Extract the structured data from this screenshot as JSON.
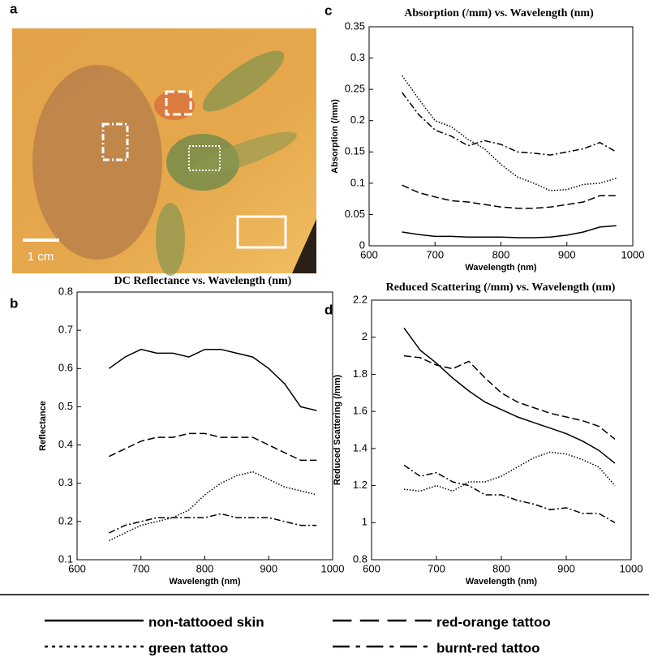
{
  "panel_a": {
    "label": "a",
    "scale_bar": "1 cm"
  },
  "chart_data": [
    {
      "type": "line",
      "panel": "b",
      "title": "DC Reflectance vs. Wavelength (nm)",
      "xlabel": "Wavelength (nm)",
      "ylabel": "Reflectance",
      "x": [
        650,
        675,
        700,
        725,
        750,
        775,
        800,
        825,
        850,
        875,
        900,
        925,
        950,
        975
      ],
      "xlim": [
        600,
        1000
      ],
      "xticks": [
        600,
        700,
        800,
        900,
        1000
      ],
      "ylim": [
        0.1,
        0.8
      ],
      "yticks": [
        0.1,
        0.2,
        0.3,
        0.4,
        0.5,
        0.6,
        0.7,
        0.8
      ],
      "series": [
        {
          "name": "non-tattooed skin",
          "color": "#000000",
          "dash": "none",
          "values": [
            0.6,
            0.63,
            0.65,
            0.64,
            0.64,
            0.63,
            0.65,
            0.65,
            0.64,
            0.63,
            0.6,
            0.56,
            0.5,
            0.49
          ]
        },
        {
          "name": "red-orange tattoo",
          "color": "#000000",
          "dash": "9,4",
          "values": [
            0.37,
            0.39,
            0.41,
            0.42,
            0.42,
            0.43,
            0.43,
            0.42,
            0.42,
            0.42,
            0.4,
            0.38,
            0.36,
            0.36
          ]
        },
        {
          "name": "green tattoo",
          "color": "#000000",
          "dash": "1.5,2",
          "values": [
            0.15,
            0.17,
            0.19,
            0.2,
            0.21,
            0.23,
            0.27,
            0.3,
            0.32,
            0.33,
            0.31,
            0.29,
            0.28,
            0.27
          ]
        },
        {
          "name": "burnt-red tattoo",
          "color": "#000000",
          "dash": "8,3,2,3",
          "values": [
            0.17,
            0.19,
            0.2,
            0.21,
            0.21,
            0.21,
            0.21,
            0.22,
            0.21,
            0.21,
            0.21,
            0.2,
            0.19,
            0.19
          ]
        }
      ]
    },
    {
      "type": "line",
      "panel": "c",
      "title": "Absorption (/mm) vs. Wavelength (nm)",
      "xlabel": "Wavelength (nm)",
      "ylabel": "Absorption (/mm)",
      "x": [
        650,
        675,
        700,
        725,
        750,
        775,
        800,
        825,
        850,
        875,
        900,
        925,
        950,
        975
      ],
      "xlim": [
        600,
        1000
      ],
      "xticks": [
        600,
        700,
        800,
        900,
        1000
      ],
      "ylim": [
        0,
        0.35
      ],
      "yticks": [
        0,
        0.05,
        0.1,
        0.15,
        0.2,
        0.25,
        0.3,
        0.35
      ],
      "series": [
        {
          "color": "#000000",
          "dash": "none",
          "values": [
            0.022,
            0.018,
            0.015,
            0.015,
            0.014,
            0.014,
            0.014,
            0.013,
            0.013,
            0.014,
            0.017,
            0.022,
            0.03,
            0.032
          ]
        },
        {
          "color": "#000000",
          "dash": "9,4",
          "values": [
            0.097,
            0.085,
            0.078,
            0.072,
            0.07,
            0.066,
            0.062,
            0.06,
            0.06,
            0.062,
            0.066,
            0.07,
            0.08,
            0.08
          ]
        },
        {
          "color": "#000000",
          "dash": "1.5,2",
          "values": [
            0.272,
            0.235,
            0.2,
            0.19,
            0.17,
            0.155,
            0.13,
            0.11,
            0.1,
            0.088,
            0.09,
            0.098,
            0.1,
            0.108
          ]
        },
        {
          "color": "#000000",
          "dash": "8,3,2,3",
          "values": [
            0.245,
            0.21,
            0.185,
            0.175,
            0.16,
            0.168,
            0.162,
            0.15,
            0.148,
            0.145,
            0.15,
            0.155,
            0.165,
            0.15
          ]
        }
      ]
    },
    {
      "type": "line",
      "panel": "d",
      "title": "Reduced Scattering (/mm) vs. Wavelength (nm)",
      "xlabel": "Wavelength (nm)",
      "ylabel": "Reduced Scattering (/mm)",
      "x": [
        650,
        675,
        700,
        725,
        750,
        775,
        800,
        825,
        850,
        875,
        900,
        925,
        950,
        975
      ],
      "xlim": [
        600,
        1000
      ],
      "xticks": [
        600,
        700,
        800,
        900,
        1000
      ],
      "ylim": [
        0.8,
        2.2
      ],
      "yticks": [
        0.8,
        1,
        1.2,
        1.4,
        1.6,
        1.8,
        2,
        2.2
      ],
      "series": [
        {
          "color": "#000000",
          "dash": "none",
          "values": [
            2.05,
            1.93,
            1.86,
            1.78,
            1.71,
            1.65,
            1.61,
            1.57,
            1.54,
            1.51,
            1.48,
            1.44,
            1.39,
            1.32
          ]
        },
        {
          "color": "#000000",
          "dash": "9,4",
          "values": [
            1.9,
            1.89,
            1.85,
            1.83,
            1.87,
            1.78,
            1.7,
            1.65,
            1.62,
            1.59,
            1.57,
            1.55,
            1.52,
            1.45
          ]
        },
        {
          "color": "#000000",
          "dash": "1.5,2",
          "values": [
            1.18,
            1.17,
            1.2,
            1.17,
            1.22,
            1.22,
            1.25,
            1.3,
            1.35,
            1.38,
            1.37,
            1.34,
            1.3,
            1.2
          ]
        },
        {
          "color": "#000000",
          "dash": "8,3,2,3",
          "values": [
            1.31,
            1.25,
            1.27,
            1.22,
            1.2,
            1.15,
            1.15,
            1.12,
            1.1,
            1.07,
            1.08,
            1.05,
            1.05,
            1.0
          ]
        }
      ]
    }
  ]
}
